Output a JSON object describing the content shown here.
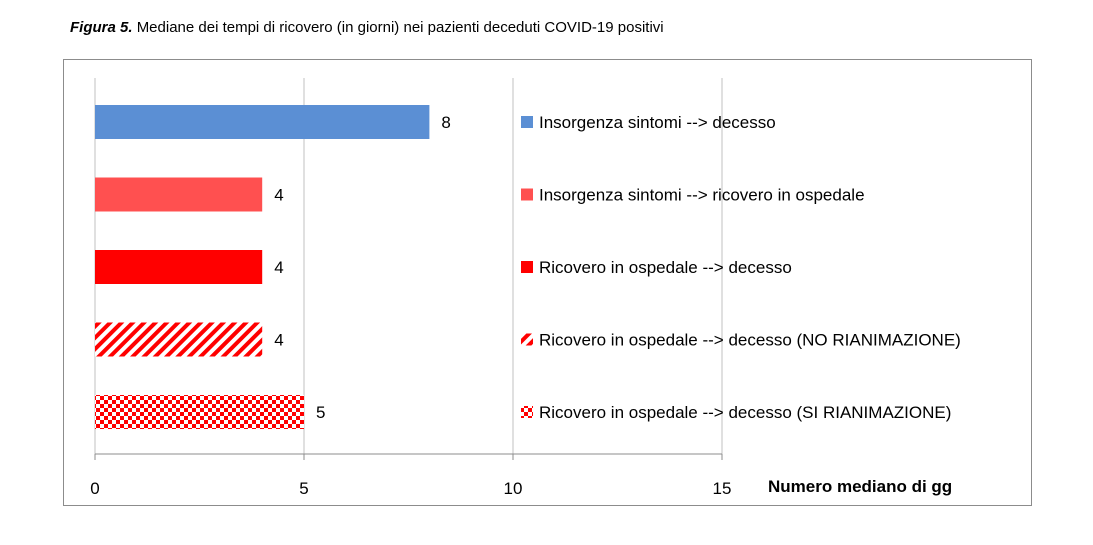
{
  "caption": {
    "figure_label": "Figura 5.",
    "text": "Mediane dei tempi di ricovero (in giorni) nei pazienti deceduti COVID-19 positivi"
  },
  "chart_data": {
    "type": "bar",
    "orientation": "horizontal",
    "xlabel": "Numero mediano di gg",
    "xlim": [
      0,
      15
    ],
    "xticks": [
      0,
      5,
      10,
      15
    ],
    "grid": "vertical",
    "legend_position": "right",
    "series": [
      {
        "name": "Insorgenza sintomi --> decesso",
        "value": 8,
        "label": "8",
        "color": "#5b8fd4",
        "pattern": "solid"
      },
      {
        "name": "Insorgenza sintomi --> ricovero in ospedale",
        "value": 4,
        "label": "4",
        "color": "#ff5050",
        "pattern": "solid"
      },
      {
        "name": "Ricovero in ospedale --> decesso",
        "value": 4,
        "label": "4",
        "color": "#ff0000",
        "pattern": "solid"
      },
      {
        "name": "Ricovero in ospedale --> decesso (NO RIANIMAZIONE)",
        "value": 4,
        "label": "4",
        "color": "#ff0000",
        "pattern": "diagonal-stripes"
      },
      {
        "name": "Ricovero in ospedale --> decesso (SI RIANIMAZIONE)",
        "value": 5,
        "label": "5",
        "color": "#ff0000",
        "pattern": "checker"
      }
    ]
  }
}
